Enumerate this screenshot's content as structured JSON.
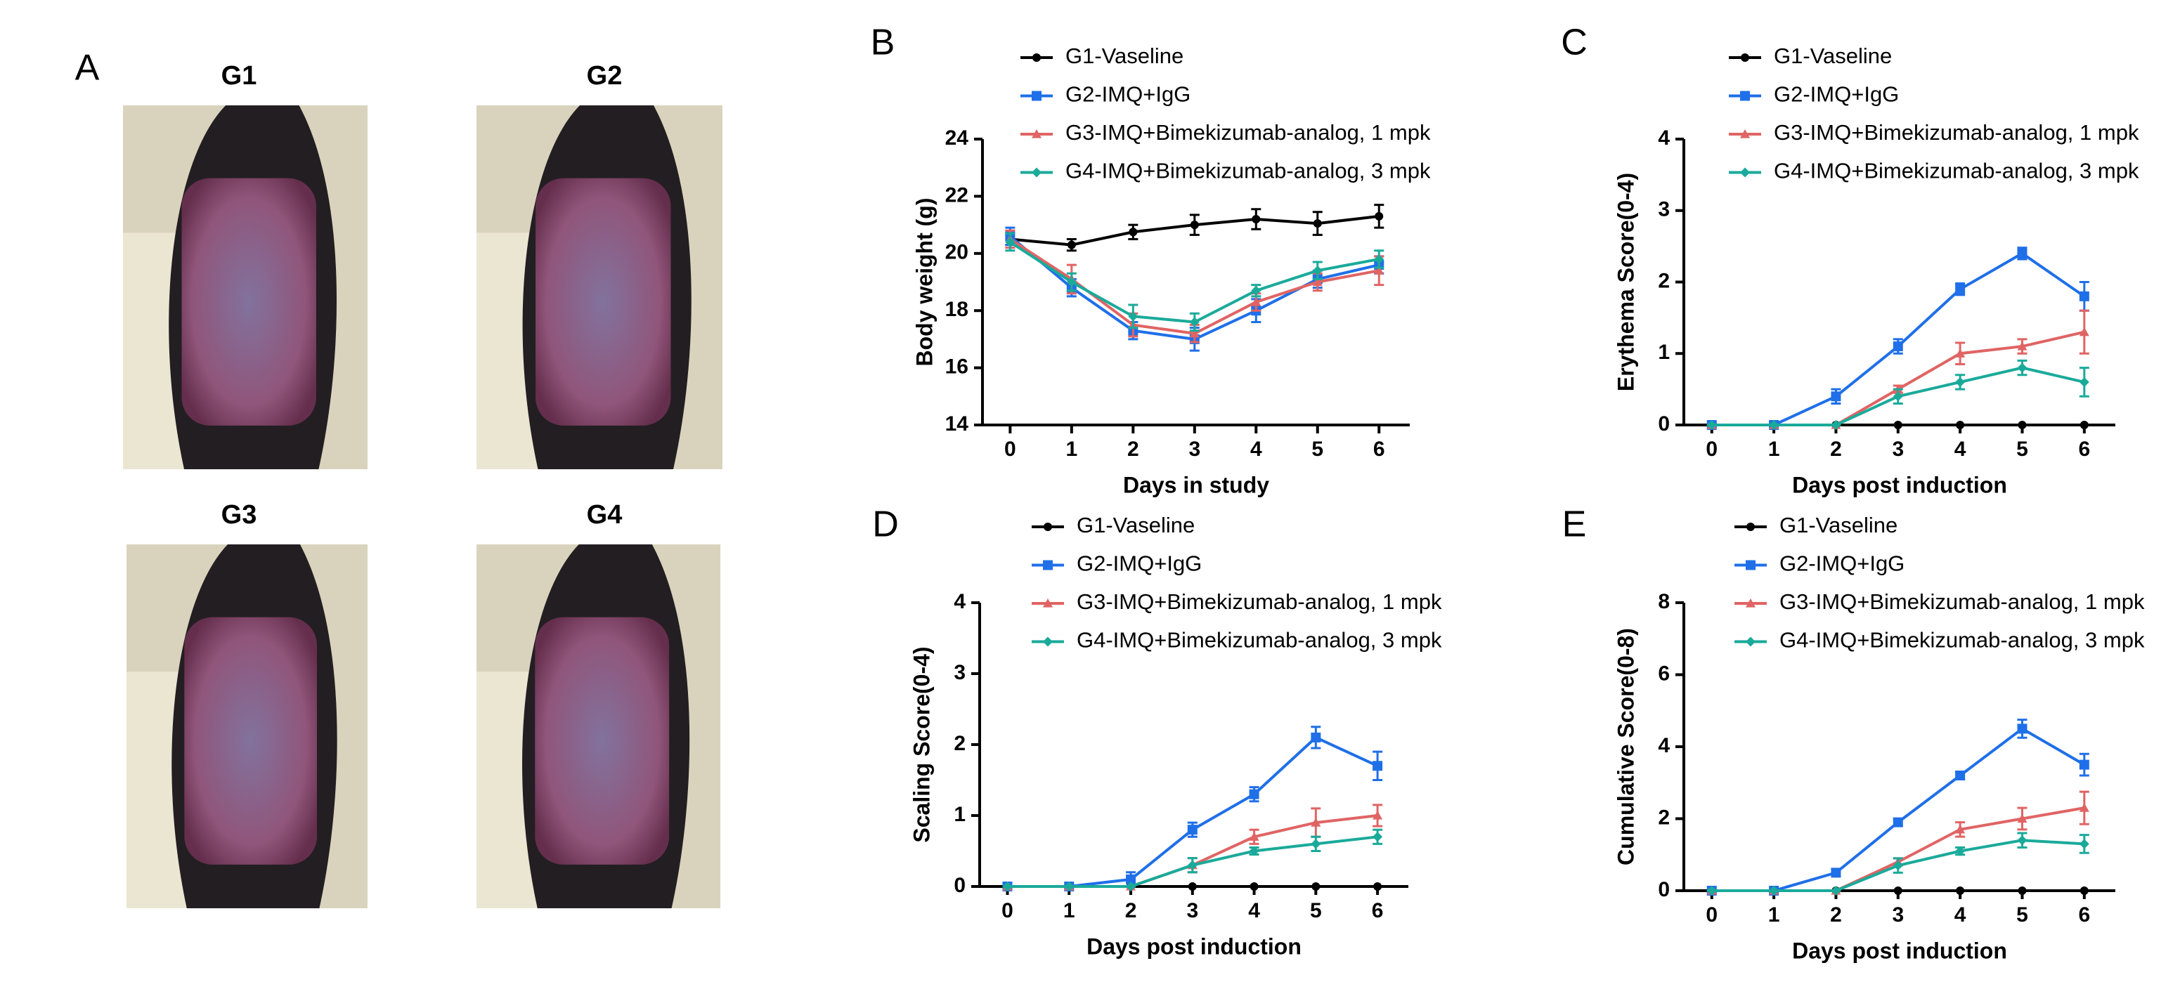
{
  "panel_a": {
    "label": "A",
    "photos": [
      "G1",
      "G2",
      "G3",
      "G4"
    ]
  },
  "chart_data": [
    {
      "panel": "B",
      "type": "line",
      "x_label": "Days in study",
      "y_label": "Body weight (g)",
      "x": [
        0,
        1,
        2,
        3,
        4,
        5,
        6
      ],
      "xlim": [
        -0.45,
        6.5
      ],
      "xticks": [
        0,
        1,
        2,
        3,
        4,
        5,
        6
      ],
      "ylim": [
        14,
        24
      ],
      "yticks": [
        14,
        16,
        18,
        20,
        22,
        24
      ],
      "series": [
        {
          "name": "G1-Vaseline",
          "color": "#000000",
          "marker": "circle",
          "values": [
            20.5,
            20.3,
            20.75,
            21.0,
            21.2,
            21.05,
            21.3
          ],
          "errors": [
            0.2,
            0.2,
            0.25,
            0.35,
            0.35,
            0.4,
            0.4
          ]
        },
        {
          "name": "G2-IMQ+IgG",
          "color": "#1f6fe8",
          "marker": "square",
          "values": [
            20.6,
            18.8,
            17.3,
            17.0,
            18.0,
            19.1,
            19.6
          ],
          "errors": [
            0.3,
            0.3,
            0.3,
            0.4,
            0.4,
            0.3,
            0.3
          ]
        },
        {
          "name": "G3-IMQ+Bimekizumab-analog, 1 mpk",
          "color": "#e06464",
          "marker": "triangle",
          "values": [
            20.5,
            19.1,
            17.5,
            17.2,
            18.3,
            19.0,
            19.4
          ],
          "errors": [
            0.3,
            0.5,
            0.4,
            0.3,
            0.3,
            0.3,
            0.5
          ]
        },
        {
          "name": "G4-IMQ+Bimekizumab-analog, 3 mpk",
          "color": "#1aaa9a",
          "marker": "diamond",
          "values": [
            20.4,
            19.0,
            17.8,
            17.6,
            18.7,
            19.4,
            19.8
          ],
          "errors": [
            0.3,
            0.3,
            0.4,
            0.3,
            0.2,
            0.3,
            0.3
          ]
        }
      ]
    },
    {
      "panel": "C",
      "type": "line",
      "x_label": "Days post induction",
      "y_label": "Erythema Score(0-4)",
      "x": [
        0,
        1,
        2,
        3,
        4,
        5,
        6
      ],
      "xlim": [
        -0.45,
        6.5
      ],
      "xticks": [
        0,
        1,
        2,
        3,
        4,
        5,
        6
      ],
      "ylim": [
        0,
        4
      ],
      "yticks": [
        0,
        1,
        2,
        3,
        4
      ],
      "series": [
        {
          "name": "G1-Vaseline",
          "color": "#000000",
          "marker": "circle",
          "values": [
            0,
            0,
            0,
            0,
            0,
            0,
            0
          ],
          "errors": [
            0,
            0,
            0,
            0,
            0,
            0,
            0
          ]
        },
        {
          "name": "G2-IMQ+IgG",
          "color": "#1f6fe8",
          "marker": "square",
          "values": [
            0,
            0,
            0.4,
            1.1,
            1.9,
            2.4,
            1.8
          ],
          "errors": [
            0,
            0,
            0.1,
            0.1,
            0.08,
            0.08,
            0.2
          ]
        },
        {
          "name": "G3-IMQ+Bimekizumab-analog, 1 mpk",
          "color": "#e06464",
          "marker": "triangle",
          "values": [
            0,
            0,
            0,
            0.5,
            1.0,
            1.1,
            1.3
          ],
          "errors": [
            0,
            0,
            0,
            0.05,
            0.15,
            0.1,
            0.3
          ]
        },
        {
          "name": "G4-IMQ+Bimekizumab-analog, 3 mpk",
          "color": "#1aaa9a",
          "marker": "diamond",
          "values": [
            0,
            0,
            0,
            0.4,
            0.6,
            0.8,
            0.6
          ],
          "errors": [
            0,
            0,
            0,
            0.1,
            0.1,
            0.1,
            0.2
          ]
        }
      ]
    },
    {
      "panel": "D",
      "type": "line",
      "x_label": "Days post induction",
      "y_label": "Scaling Score(0-4)",
      "x": [
        0,
        1,
        2,
        3,
        4,
        5,
        6
      ],
      "xlim": [
        -0.45,
        6.5
      ],
      "xticks": [
        0,
        1,
        2,
        3,
        4,
        5,
        6
      ],
      "ylim": [
        0,
        4
      ],
      "yticks": [
        0,
        1,
        2,
        3,
        4
      ],
      "series": [
        {
          "name": "G1-Vaseline",
          "color": "#000000",
          "marker": "circle",
          "values": [
            0,
            0,
            0,
            0,
            0,
            0,
            0
          ],
          "errors": [
            0,
            0,
            0,
            0,
            0,
            0,
            0
          ]
        },
        {
          "name": "G2-IMQ+IgG",
          "color": "#1f6fe8",
          "marker": "square",
          "values": [
            0,
            0,
            0.1,
            0.8,
            1.3,
            2.1,
            1.7
          ],
          "errors": [
            0,
            0,
            0.1,
            0.1,
            0.1,
            0.15,
            0.2
          ]
        },
        {
          "name": "G3-IMQ+Bimekizumab-analog, 1 mpk",
          "color": "#e06464",
          "marker": "triangle",
          "values": [
            0,
            0,
            0,
            0.3,
            0.7,
            0.9,
            1.0
          ],
          "errors": [
            0,
            0,
            0,
            0.1,
            0.1,
            0.2,
            0.15
          ]
        },
        {
          "name": "G4-IMQ+Bimekizumab-analog, 3 mpk",
          "color": "#1aaa9a",
          "marker": "diamond",
          "values": [
            0,
            0,
            0,
            0.3,
            0.5,
            0.6,
            0.7
          ],
          "errors": [
            0,
            0,
            0,
            0.1,
            0.05,
            0.1,
            0.1
          ]
        }
      ]
    },
    {
      "panel": "E",
      "type": "line",
      "x_label": "Days post induction",
      "y_label": "Cumulative Score(0-8)",
      "x": [
        0,
        1,
        2,
        3,
        4,
        5,
        6
      ],
      "xlim": [
        -0.45,
        6.5
      ],
      "xticks": [
        0,
        1,
        2,
        3,
        4,
        5,
        6
      ],
      "ylim": [
        0,
        8
      ],
      "yticks": [
        0,
        2,
        4,
        6,
        8
      ],
      "series": [
        {
          "name": "G1-Vaseline",
          "color": "#000000",
          "marker": "circle",
          "values": [
            0,
            0,
            0,
            0,
            0,
            0,
            0
          ],
          "errors": [
            0,
            0,
            0,
            0,
            0,
            0,
            0
          ]
        },
        {
          "name": "G2-IMQ+IgG",
          "color": "#1f6fe8",
          "marker": "square",
          "values": [
            0,
            0,
            0.5,
            1.9,
            3.2,
            4.5,
            3.5
          ],
          "errors": [
            0,
            0,
            0.1,
            0.1,
            0.1,
            0.25,
            0.3
          ]
        },
        {
          "name": "G3-IMQ+Bimekizumab-analog, 1 mpk",
          "color": "#e06464",
          "marker": "triangle",
          "values": [
            0,
            0,
            0,
            0.8,
            1.7,
            2.0,
            2.3
          ],
          "errors": [
            0,
            0,
            0,
            0.1,
            0.2,
            0.3,
            0.45
          ]
        },
        {
          "name": "G4-IMQ+Bimekizumab-analog, 3 mpk",
          "color": "#1aaa9a",
          "marker": "diamond",
          "values": [
            0,
            0,
            0,
            0.7,
            1.1,
            1.4,
            1.3
          ],
          "errors": [
            0,
            0,
            0,
            0.2,
            0.1,
            0.2,
            0.25
          ]
        }
      ]
    }
  ]
}
